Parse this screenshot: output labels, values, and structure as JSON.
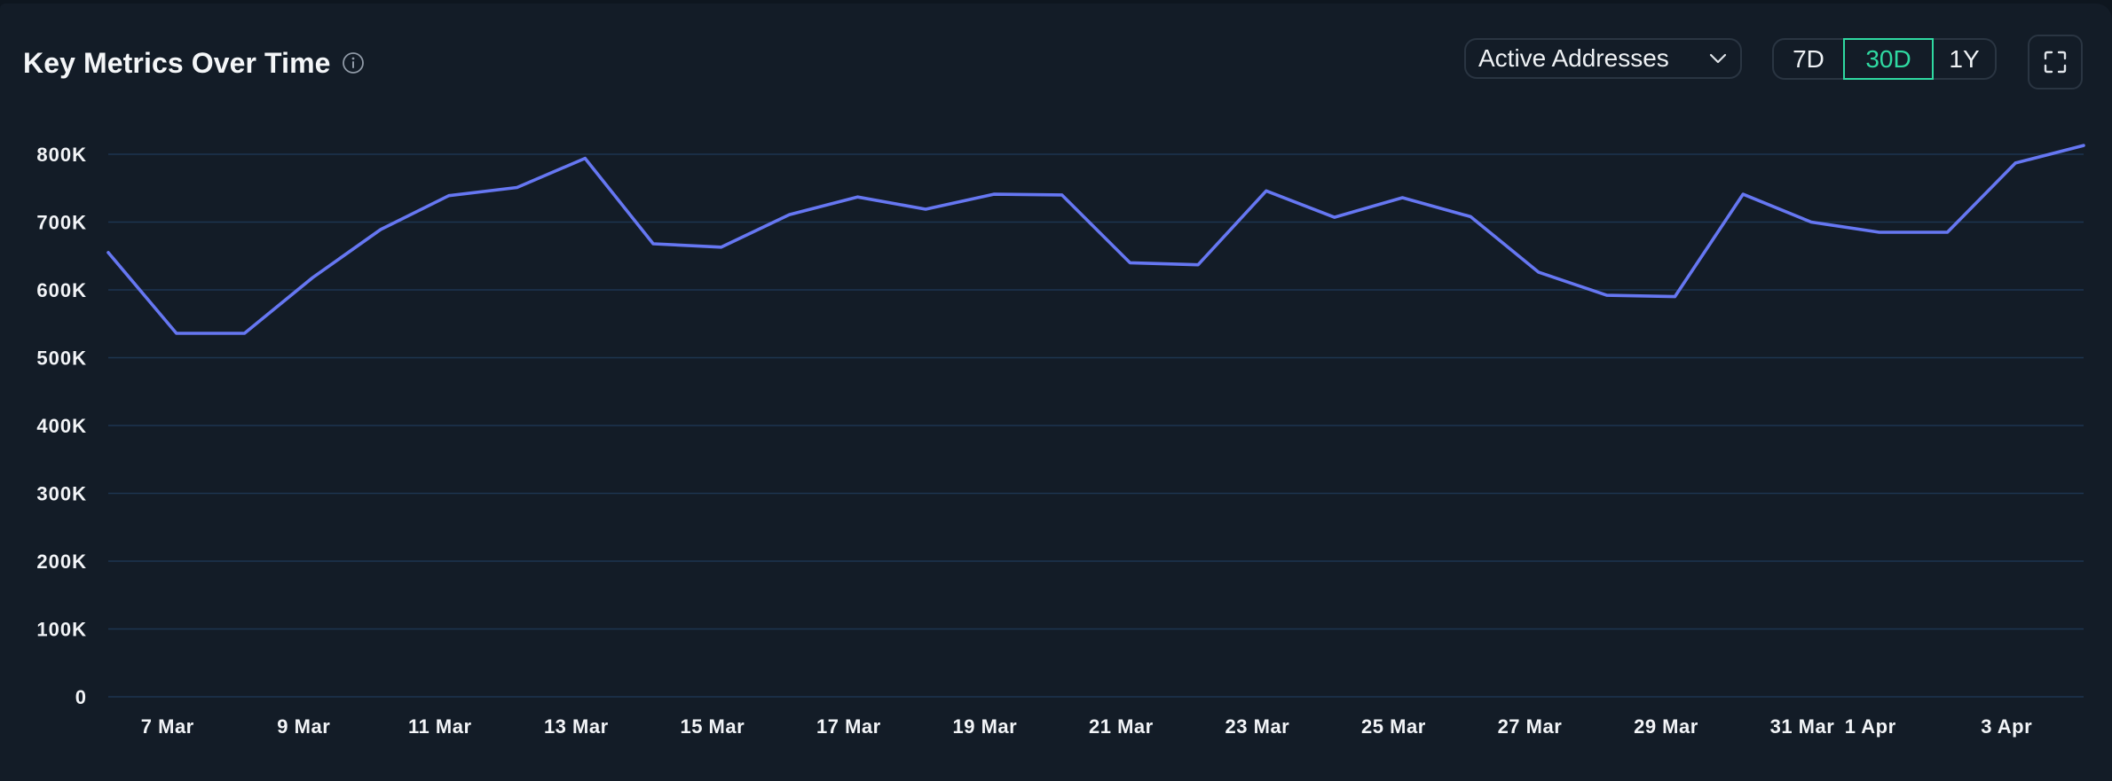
{
  "header": {
    "title": "Key Metrics Over Time",
    "info_icon": "info-circle-icon"
  },
  "controls": {
    "metric_select": {
      "selected": "Active Addresses",
      "icon": "chevron-down-icon"
    },
    "ranges": [
      {
        "label": "7D",
        "active": false
      },
      {
        "label": "30D",
        "active": true
      },
      {
        "label": "1Y",
        "active": false
      }
    ],
    "expand_icon": "fullscreen-expand-icon"
  },
  "colors": {
    "background": "#131c27",
    "line": "#6677f2",
    "gridline": "#1d3550",
    "accent_active": "#2fd9a1",
    "text": "#f2f4f7"
  },
  "chart_data": {
    "type": "line",
    "title": "Key Metrics Over Time",
    "xlabel": "",
    "ylabel": "",
    "series": [
      {
        "name": "Active Addresses",
        "color": "#6677f2",
        "values": [
          655000,
          536000,
          536000,
          618000,
          689000,
          739000,
          751000,
          794000,
          668000,
          663000,
          711000,
          737000,
          719000,
          741000,
          740000,
          640000,
          637000,
          746000,
          707000,
          736000,
          708000,
          626000,
          592000,
          590000,
          741000,
          700000,
          685000,
          685000,
          787000,
          813000
        ]
      }
    ],
    "x": [
      "6 Mar",
      "7 Mar",
      "8 Mar",
      "9 Mar",
      "10 Mar",
      "11 Mar",
      "12 Mar",
      "13 Mar",
      "14 Mar",
      "15 Mar",
      "16 Mar",
      "17 Mar",
      "18 Mar",
      "19 Mar",
      "20 Mar",
      "21 Mar",
      "22 Mar",
      "23 Mar",
      "24 Mar",
      "25 Mar",
      "26 Mar",
      "27 Mar",
      "28 Mar",
      "29 Mar",
      "30 Mar",
      "31 Mar",
      "1 Apr",
      "2 Apr",
      "3 Apr",
      "4 Apr"
    ],
    "x_tick_labels": [
      {
        "index": 1,
        "label": "7 Mar"
      },
      {
        "index": 3,
        "label": "9 Mar"
      },
      {
        "index": 5,
        "label": "11 Mar"
      },
      {
        "index": 7,
        "label": "13 Mar"
      },
      {
        "index": 9,
        "label": "15 Mar"
      },
      {
        "index": 11,
        "label": "17 Mar"
      },
      {
        "index": 13,
        "label": "19 Mar"
      },
      {
        "index": 15,
        "label": "21 Mar"
      },
      {
        "index": 17,
        "label": "23 Mar"
      },
      {
        "index": 19,
        "label": "25 Mar"
      },
      {
        "index": 21,
        "label": "27 Mar"
      },
      {
        "index": 23,
        "label": "29 Mar"
      },
      {
        "index": 25,
        "label": "31 Mar"
      },
      {
        "index": 26,
        "label": "1 Apr"
      },
      {
        "index": 28,
        "label": "3 Apr"
      }
    ],
    "y_ticks": [
      0,
      100000,
      200000,
      300000,
      400000,
      500000,
      600000,
      700000,
      800000
    ],
    "y_tick_labels": [
      "0",
      "100K",
      "200K",
      "300K",
      "400K",
      "500K",
      "600K",
      "700K",
      "800K"
    ],
    "ylim": [
      0,
      800000
    ],
    "grid": true,
    "legend": "none"
  }
}
